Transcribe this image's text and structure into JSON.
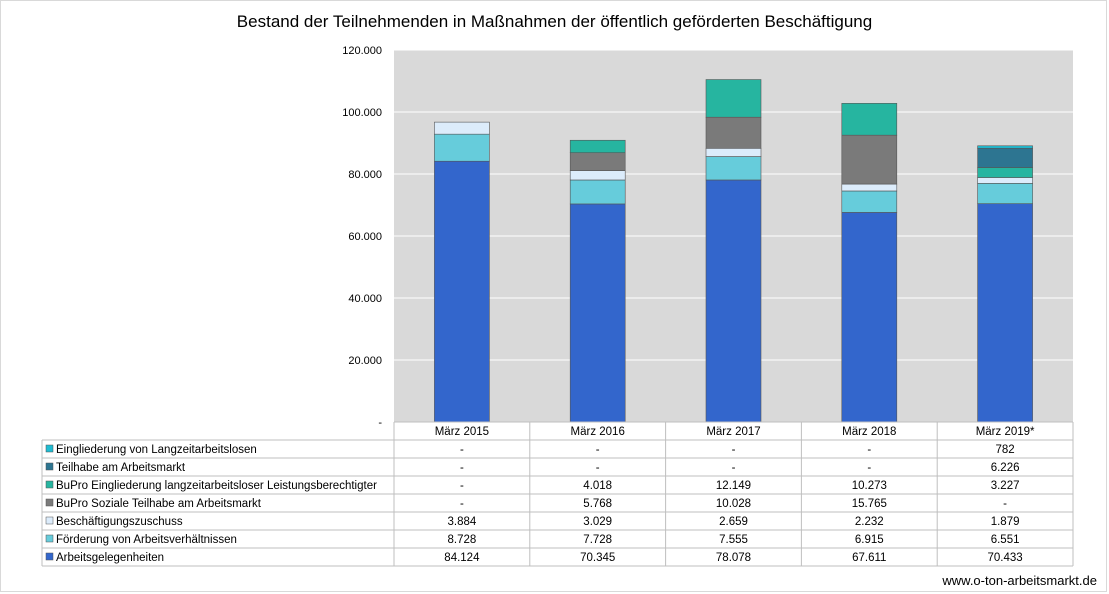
{
  "chart_data": {
    "type": "bar",
    "stacked": true,
    "title": "Bestand der Teilnehmenden in Maßnahmen der öffentlich geförderten Beschäftigung",
    "categories": [
      "März 2015",
      "März 2016",
      "März 2017",
      "März 2018",
      "März 2019*"
    ],
    "ylim": [
      0,
      120000
    ],
    "y_ticks": [
      "-",
      "20.000",
      "40.000",
      "60.000",
      "80.000",
      "100.000",
      "120.000"
    ],
    "grid": true,
    "legend": "data-table-left",
    "series": [
      {
        "name": "Eingliederung von Langzeitarbeitslosen",
        "color": "#1fbcd2",
        "values": [
          0,
          0,
          0,
          0,
          782
        ],
        "labels": [
          "-",
          "-",
          "-",
          "-",
          "782"
        ]
      },
      {
        "name": "Teilhabe am Arbeitsmarkt",
        "color": "#2d7591",
        "values": [
          0,
          0,
          0,
          0,
          6226
        ],
        "labels": [
          "-",
          "-",
          "-",
          "-",
          "6.226"
        ]
      },
      {
        "name": "BuPro Eingliederung langzeitarbeitsloser Leistungsberechtigter",
        "color": "#26b5a0",
        "values": [
          0,
          4018,
          12149,
          10273,
          3227
        ],
        "labels": [
          "-",
          "4.018",
          "12.149",
          "10.273",
          "3.227"
        ]
      },
      {
        "name": "BuPro Soziale Teilhabe am Arbeitsmarkt",
        "color": "#7a7a7a",
        "values": [
          0,
          5768,
          10028,
          15765,
          0
        ],
        "labels": [
          "-",
          "5.768",
          "10.028",
          "15.765",
          "-"
        ]
      },
      {
        "name": "Beschäftigungszuschuss",
        "color": "#dcecfb",
        "values": [
          3884,
          3029,
          2659,
          2232,
          1879
        ],
        "labels": [
          "3.884",
          "3.029",
          "2.659",
          "2.232",
          "1.879"
        ]
      },
      {
        "name": "Förderung von Arbeitsverhältnissen",
        "color": "#66ccdb",
        "values": [
          8728,
          7728,
          7555,
          6915,
          6551
        ],
        "labels": [
          "8.728",
          "7.728",
          "7.555",
          "6.915",
          "6.551"
        ]
      },
      {
        "name": "Arbeitsgelegenheiten",
        "color": "#3366cc",
        "values": [
          84124,
          70345,
          78078,
          67611,
          70433
        ],
        "labels": [
          "84.124",
          "70.345",
          "78.078",
          "67.611",
          "70.433"
        ]
      }
    ]
  },
  "watermark": "www.o-ton-arbeitsmarkt.de"
}
